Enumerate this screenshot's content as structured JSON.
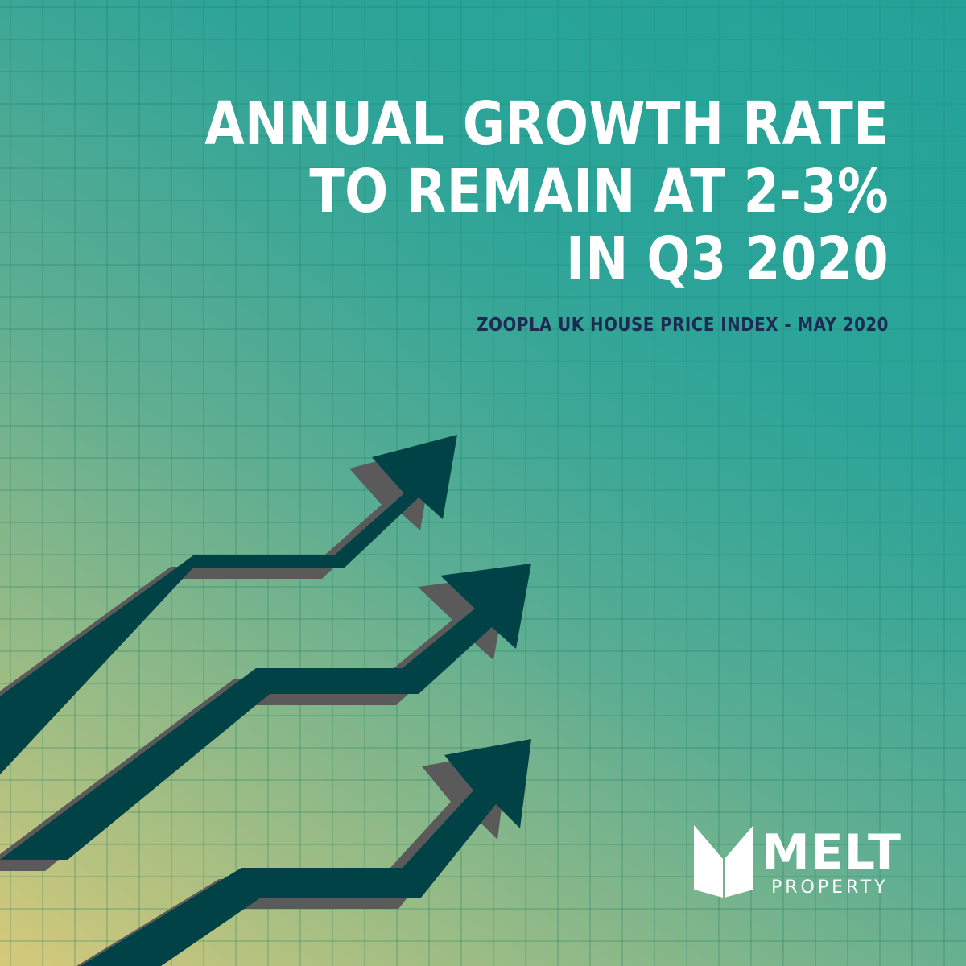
{
  "headline": {
    "line1": "ANNUAL GROWTH RATE",
    "line2": "TO REMAIN AT 2-3%",
    "line3": "IN Q3 2020"
  },
  "subtitle": "ZOOPLA UK HOUSE PRICE INDEX - MAY 2020",
  "logo": {
    "name": "MELT",
    "tagline": "PROPERTY"
  },
  "graphic": {
    "arrow_count": 3,
    "icon": "rising-arrows-icon",
    "arrow_color": "#004246",
    "shadow_color": "#5a5a5a"
  },
  "colors": {
    "text": "#ffffff",
    "subtitle": "#1d2b52",
    "background_top": "#22a095",
    "background_bottom": "#d6c97a"
  }
}
